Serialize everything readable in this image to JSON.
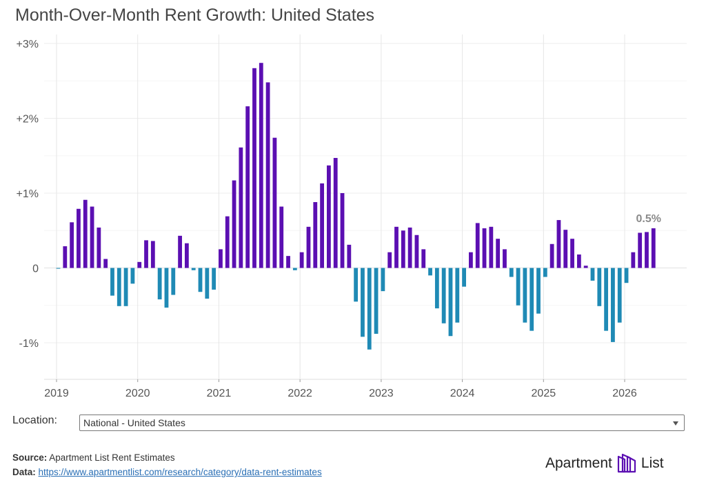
{
  "title": "Month-Over-Month Rent Growth: United States",
  "chart_data": {
    "type": "bar",
    "title": "Month-Over-Month Rent Growth: United States",
    "xlabel": "",
    "ylabel": "",
    "ylim": [
      -1.5,
      3.0
    ],
    "y_ticks": [
      {
        "value": 3,
        "label": "+3%"
      },
      {
        "value": 2,
        "label": "+2%"
      },
      {
        "value": 1,
        "label": "+1%"
      },
      {
        "value": 0,
        "label": "0"
      },
      {
        "value": -1,
        "label": "-1%"
      }
    ],
    "x_ticks": [
      "2019",
      "2020",
      "2021",
      "2022",
      "2023",
      "2024",
      "2025",
      "2026"
    ],
    "start": "2019-01",
    "positive_color": "#5b0fb2",
    "negative_color": "#1f8ab5",
    "grid": true,
    "last_value_label": "0.5%",
    "values": [
      -0.01,
      0.29,
      0.61,
      0.79,
      0.91,
      0.82,
      0.54,
      0.12,
      -0.37,
      -0.51,
      -0.51,
      -0.21,
      0.08,
      0.37,
      0.36,
      -0.42,
      -0.53,
      -0.36,
      0.43,
      0.33,
      -0.03,
      -0.32,
      -0.41,
      -0.29,
      0.25,
      0.69,
      1.17,
      1.61,
      2.16,
      2.67,
      2.74,
      2.48,
      1.74,
      0.82,
      0.16,
      -0.03,
      0.21,
      0.55,
      0.88,
      1.13,
      1.37,
      1.47,
      1.0,
      0.31,
      -0.45,
      -0.92,
      -1.09,
      -0.88,
      -0.31,
      0.21,
      0.55,
      0.5,
      0.54,
      0.44,
      0.25,
      -0.1,
      -0.54,
      -0.74,
      -0.91,
      -0.73,
      -0.25,
      0.21,
      0.6,
      0.53,
      0.55,
      0.39,
      0.25,
      -0.12,
      -0.5,
      -0.73,
      -0.84,
      -0.61,
      -0.12,
      0.32,
      0.64,
      0.51,
      0.39,
      0.18,
      0.03,
      -0.17,
      -0.51,
      -0.84,
      -0.99,
      -0.73,
      -0.2,
      0.21,
      0.47,
      0.48,
      0.53
    ]
  },
  "location": {
    "label": "Location:",
    "selected": "National - United States"
  },
  "footer": {
    "source_label": "Source:",
    "source_text": "Apartment List Rent Estimates",
    "data_label": "Data:",
    "data_link": "https://www.apartmentlist.com/research/category/data-rent-estimates"
  },
  "logo": {
    "text_left": "Apartment",
    "text_right": "List"
  }
}
